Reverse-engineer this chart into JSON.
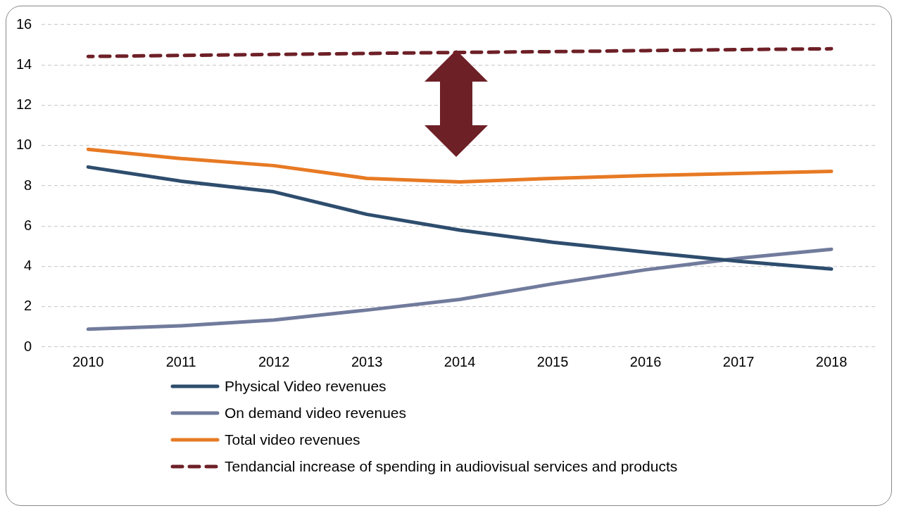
{
  "chart_data": {
    "type": "line",
    "categories": [
      "2010",
      "2011",
      "2012",
      "2013",
      "2014",
      "2015",
      "2016",
      "2017",
      "2018"
    ],
    "series": [
      {
        "name": "Physical Video revenues",
        "color": "#2e4d6e",
        "values": [
          8.93,
          8.23,
          7.7,
          6.58,
          5.8,
          5.2,
          4.71,
          4.25,
          3.87
        ]
      },
      {
        "name": "On demand video revenues",
        "color": "#717b9c",
        "values": [
          0.88,
          1.05,
          1.34,
          1.83,
          2.36,
          3.13,
          3.83,
          4.4,
          4.85
        ]
      },
      {
        "name": "Total video revenues",
        "color": "#e77a24",
        "values": [
          9.81,
          9.35,
          9.0,
          8.37,
          8.19,
          8.37,
          8.51,
          8.61,
          8.72
        ]
      },
      {
        "name": "Tendancial increase of spending in audiovisual services and products",
        "color": "#6e2027",
        "line_style": "dashed",
        "values": [
          14.42,
          14.47,
          14.52,
          14.57,
          14.62,
          14.66,
          14.71,
          14.76,
          14.8
        ]
      }
    ],
    "ylim": [
      0,
      16
    ],
    "yticks": [
      0,
      2,
      4,
      6,
      8,
      10,
      12,
      14,
      16
    ],
    "grid": "y",
    "legend": "bottom",
    "marker": "none",
    "line_style": "solid"
  }
}
